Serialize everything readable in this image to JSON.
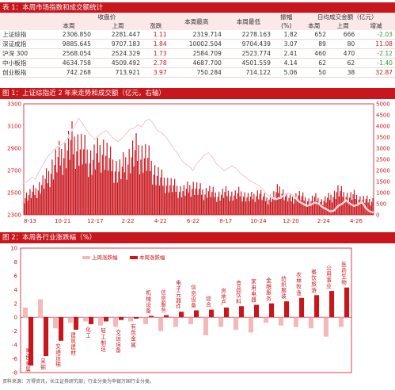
{
  "table1": {
    "title": "表 1：本周市场指数和成交额统计",
    "group_headers": [
      "收盘价",
      "振幅",
      "日均成交金额（亿元）"
    ],
    "columns": [
      "本周",
      "上周",
      "涨跌",
      "本周最高",
      "本周最低",
      "(%)",
      "本周",
      "上周",
      "增减"
    ],
    "rows": [
      {
        "name": "上证综指",
        "close_this": "2306.850",
        "close_last": "2281.447",
        "change": "1.11",
        "high": "2319.714",
        "low": "2278.163",
        "amp": "1.82",
        "vol_this": "652",
        "vol_last": "666",
        "vol_diff": "-2.03"
      },
      {
        "name": "深证成指",
        "close_this": "9885.645",
        "close_last": "9707.183",
        "change": "1.84",
        "high": "10002.504",
        "low": "9704.439",
        "amp": "3.07",
        "vol_this": "89",
        "vol_last": "80",
        "vol_diff": "11.08"
      },
      {
        "name": "沪深 300",
        "close_this": "2568.054",
        "close_last": "2524.329",
        "change": "1.73",
        "high": "2584.709",
        "low": "2523.774",
        "amp": "2.41",
        "vol_this": "460",
        "vol_last": "470",
        "vol_diff": "-2.12"
      },
      {
        "name": "中小板指",
        "close_this": "4634.758",
        "close_last": "4509.492",
        "change": "2.78",
        "high": "4687.700",
        "low": "4501.559",
        "amp": "4.14",
        "vol_this": "62",
        "vol_last": "62",
        "vol_diff": "-1.40"
      },
      {
        "name": "创业板指",
        "close_this": "742.268",
        "close_last": "713.921",
        "change": "3.97",
        "high": "750.284",
        "low": "714.122",
        "amp": "5.06",
        "vol_this": "50",
        "vol_last": "38",
        "vol_diff": "32.87"
      }
    ],
    "colors": {
      "red": "#c8161d",
      "green": "#2e9e2e"
    }
  },
  "chart_data": [
    {
      "type": "bar",
      "title": "图 1：上证综指近 2 年来走势和成交额（亿元，右轴）",
      "x_ticks": [
        "8-13",
        "10-21",
        "12-17",
        "2-22",
        "4-22",
        "6-22",
        "8-17",
        "10-24",
        "12-20",
        "2-24",
        "4-26"
      ],
      "y_left_ticks": [
        "2300",
        "2500",
        "2700",
        "2900",
        "3100",
        "3300"
      ],
      "y_left_range": [
        2300,
        3300
      ],
      "y_right_ticks": [
        "0",
        "500",
        "1000",
        "1500",
        "2000",
        "2500",
        "3000",
        "3500",
        "4000",
        "4500",
        "5000"
      ],
      "y_right_range": [
        0,
        5000
      ],
      "bar_color": "#c8161d",
      "line_color": "#ffffff",
      "index_series": [
        2590,
        2600,
        2640,
        2620,
        2700,
        2760,
        2820,
        2860,
        2900,
        2920,
        2940,
        2980,
        3050,
        3100,
        3170,
        3120,
        3060,
        3020,
        2980,
        3010,
        3040,
        3060,
        3020,
        2980,
        2960,
        2990,
        3030,
        3070,
        3080,
        3110,
        3090,
        3150,
        3160,
        3120,
        3060,
        3040,
        3010,
        2960,
        2900,
        2860,
        2800,
        2760,
        2740,
        2700,
        2760,
        2800,
        2840,
        2860,
        2820,
        2760,
        2730,
        2700,
        2720,
        2740,
        2720,
        2680,
        2650,
        2620,
        2600,
        2580,
        2560,
        2520,
        2480,
        2460,
        2440,
        2450,
        2470,
        2500,
        2490,
        2460,
        2420,
        2400,
        2380,
        2390,
        2410,
        2400,
        2370,
        2350,
        2330,
        2340,
        2380,
        2400,
        2430,
        2400,
        2380,
        2390,
        2420,
        2360,
        2330,
        2320
      ],
      "volume_series": [
        800,
        900,
        1000,
        1100,
        1300,
        1500,
        1700,
        2100,
        2400,
        2600,
        2800,
        3000,
        3300,
        3200,
        3100,
        2900,
        2700,
        2500,
        2600,
        2800,
        3000,
        2700,
        2400,
        2200,
        2000,
        2100,
        2400,
        2600,
        2800,
        2900,
        2700,
        2600,
        2400,
        2000,
        1800,
        1600,
        1500,
        1400,
        1300,
        1200,
        1100,
        1100,
        1200,
        1300,
        1200,
        1100,
        1000,
        1100,
        1000,
        900,
        900,
        1000,
        1000,
        900,
        900,
        1000,
        900,
        800,
        800,
        900,
        1000,
        800,
        700,
        800,
        900,
        1200,
        1000,
        800,
        700,
        800,
        900,
        800,
        700,
        600,
        800,
        700,
        600,
        700,
        800,
        900,
        1100,
        1000,
        900,
        800,
        900,
        800,
        700,
        700,
        650,
        650
      ]
    },
    {
      "type": "bar",
      "title": "图 2：本周各行业涨跌幅（%）",
      "legend": [
        "上周涨跌幅",
        "本周涨跌幅"
      ],
      "y_ticks": [
        "-8",
        "-6",
        "-4",
        "-2",
        "0",
        "2",
        "4",
        "6",
        "8",
        "10"
      ],
      "y_range": [
        -8,
        10
      ],
      "bar_color_this": "#c8161d",
      "bar_color_last": "#f3b8ba",
      "categories": [
        "黑色金属",
        "采掘",
        "交通运输",
        "建筑建材",
        "化工",
        "轻工制造",
        "交运设备",
        "有色金属",
        "机械设备",
        "信息服务",
        "电子元器件",
        "信息设备",
        "综合",
        "房地产",
        "食品饮料",
        "家用电器",
        "金融服务",
        "纺织服装",
        "农林牧渔",
        "餐饮旅游",
        "公用事业",
        "医药生物"
      ],
      "this_week": [
        -7.0,
        -5.6,
        -3.4,
        -1.8,
        -1.0,
        -0.6,
        -0.4,
        -0.2,
        0.2,
        0.3,
        0.8,
        1.0,
        1.1,
        1.4,
        1.6,
        1.8,
        2.0,
        2.3,
        2.8,
        3.2,
        3.8,
        4.3
      ],
      "last_week": [
        1.4,
        2.6,
        -1.6,
        -0.8,
        -0.6,
        -1.2,
        -1.4,
        -0.6,
        -1.0,
        -2.0,
        -1.4,
        -1.0,
        -2.6,
        -1.4,
        -1.8,
        -2.2,
        -0.8,
        -1.2,
        -1.4,
        -1.6,
        -2.8,
        -1.4
      ]
    }
  ],
  "footer": "资料来源：万得资讯，长江证券研究部；行业分类为申银万国行业分类。"
}
